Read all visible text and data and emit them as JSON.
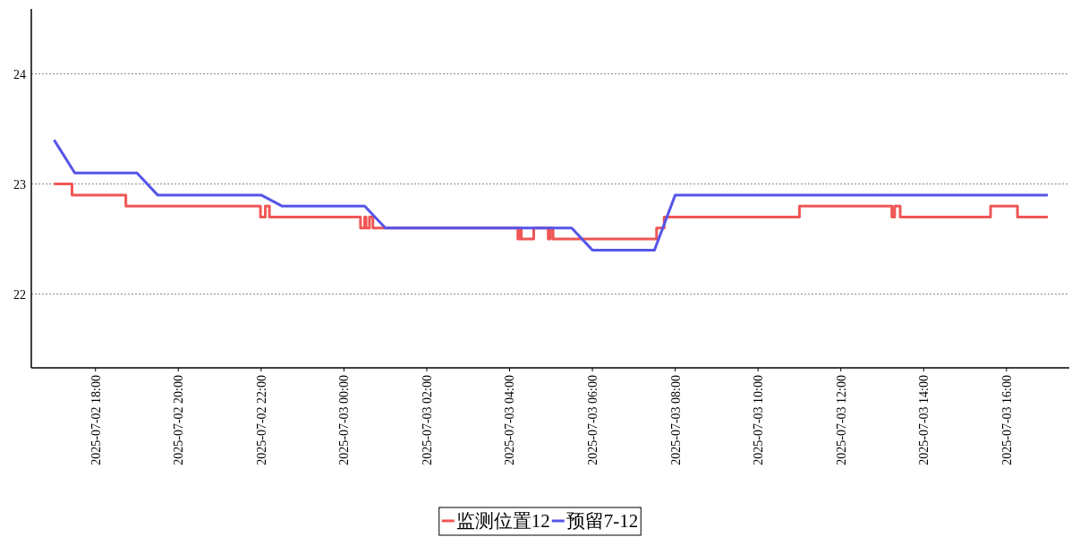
{
  "chart_data": {
    "type": "line",
    "xlim": [
      "2025-07-02T16:27",
      "2025-07-03T17:31"
    ],
    "xticks": [
      {
        "value": "2025-07-02T18:00",
        "label": "2025-07-02 18:00"
      },
      {
        "value": "2025-07-02T20:00",
        "label": "2025-07-02 20:00"
      },
      {
        "value": "2025-07-02T22:00",
        "label": "2025-07-02 22:00"
      },
      {
        "value": "2025-07-03T00:00",
        "label": "2025-07-03 00:00"
      },
      {
        "value": "2025-07-03T02:00",
        "label": "2025-07-03 02:00"
      },
      {
        "value": "2025-07-03T04:00",
        "label": "2025-07-03 04:00"
      },
      {
        "value": "2025-07-03T06:00",
        "label": "2025-07-03 06:00"
      },
      {
        "value": "2025-07-03T08:00",
        "label": "2025-07-03 08:00"
      },
      {
        "value": "2025-07-03T10:00",
        "label": "2025-07-03 10:00"
      },
      {
        "value": "2025-07-03T12:00",
        "label": "2025-07-03 12:00"
      },
      {
        "value": "2025-07-03T14:00",
        "label": "2025-07-03 14:00"
      },
      {
        "value": "2025-07-03T16:00",
        "label": "2025-07-03 16:00"
      }
    ],
    "ylim": [
      21.33,
      24.59
    ],
    "yticks": [
      22,
      23,
      24
    ],
    "grid": "y",
    "legend": "bottom",
    "series": [
      {
        "name": "监测位置12",
        "color": "#f05656",
        "type": "step",
        "x": [
          "2025-07-02T17:00",
          "2025-07-02T17:26",
          "2025-07-02T18:44",
          "2025-07-02T21:59",
          "2025-07-02T22:06",
          "2025-07-02T22:12",
          "2025-07-03T00:24",
          "2025-07-03T00:30",
          "2025-07-03T00:32",
          "2025-07-03T00:37",
          "2025-07-03T00:42",
          "2025-07-03T04:12",
          "2025-07-03T04:15",
          "2025-07-03T04:17",
          "2025-07-03T04:35",
          "2025-07-03T04:56",
          "2025-07-03T04:59",
          "2025-07-03T05:03",
          "2025-07-03T07:33",
          "2025-07-03T07:44",
          "2025-07-03T11:00",
          "2025-07-03T13:14",
          "2025-07-03T13:18",
          "2025-07-03T13:26",
          "2025-07-03T15:37",
          "2025-07-03T16:16",
          "2025-07-03T17:00"
        ],
        "values": [
          23.0,
          22.9,
          22.8,
          22.7,
          22.8,
          22.7,
          22.6,
          22.7,
          22.6,
          22.7,
          22.6,
          22.5,
          22.6,
          22.5,
          22.6,
          22.5,
          22.6,
          22.5,
          22.6,
          22.7,
          22.8,
          22.7,
          22.8,
          22.7,
          22.8,
          22.7,
          22.7
        ]
      },
      {
        "name": "预留7-12",
        "color": "#5555e8",
        "type": "line",
        "x": [
          "2025-07-02T17:00",
          "2025-07-02T17:30",
          "2025-07-02T19:00",
          "2025-07-02T19:30",
          "2025-07-02T22:00",
          "2025-07-02T22:30",
          "2025-07-03T00:30",
          "2025-07-03T01:00",
          "2025-07-03T05:30",
          "2025-07-03T06:00",
          "2025-07-03T07:30",
          "2025-07-03T08:00",
          "2025-07-03T17:00"
        ],
        "values": [
          23.4,
          23.1,
          23.1,
          22.9,
          22.9,
          22.8,
          22.8,
          22.6,
          22.6,
          22.4,
          22.4,
          22.9,
          22.9
        ]
      }
    ]
  }
}
